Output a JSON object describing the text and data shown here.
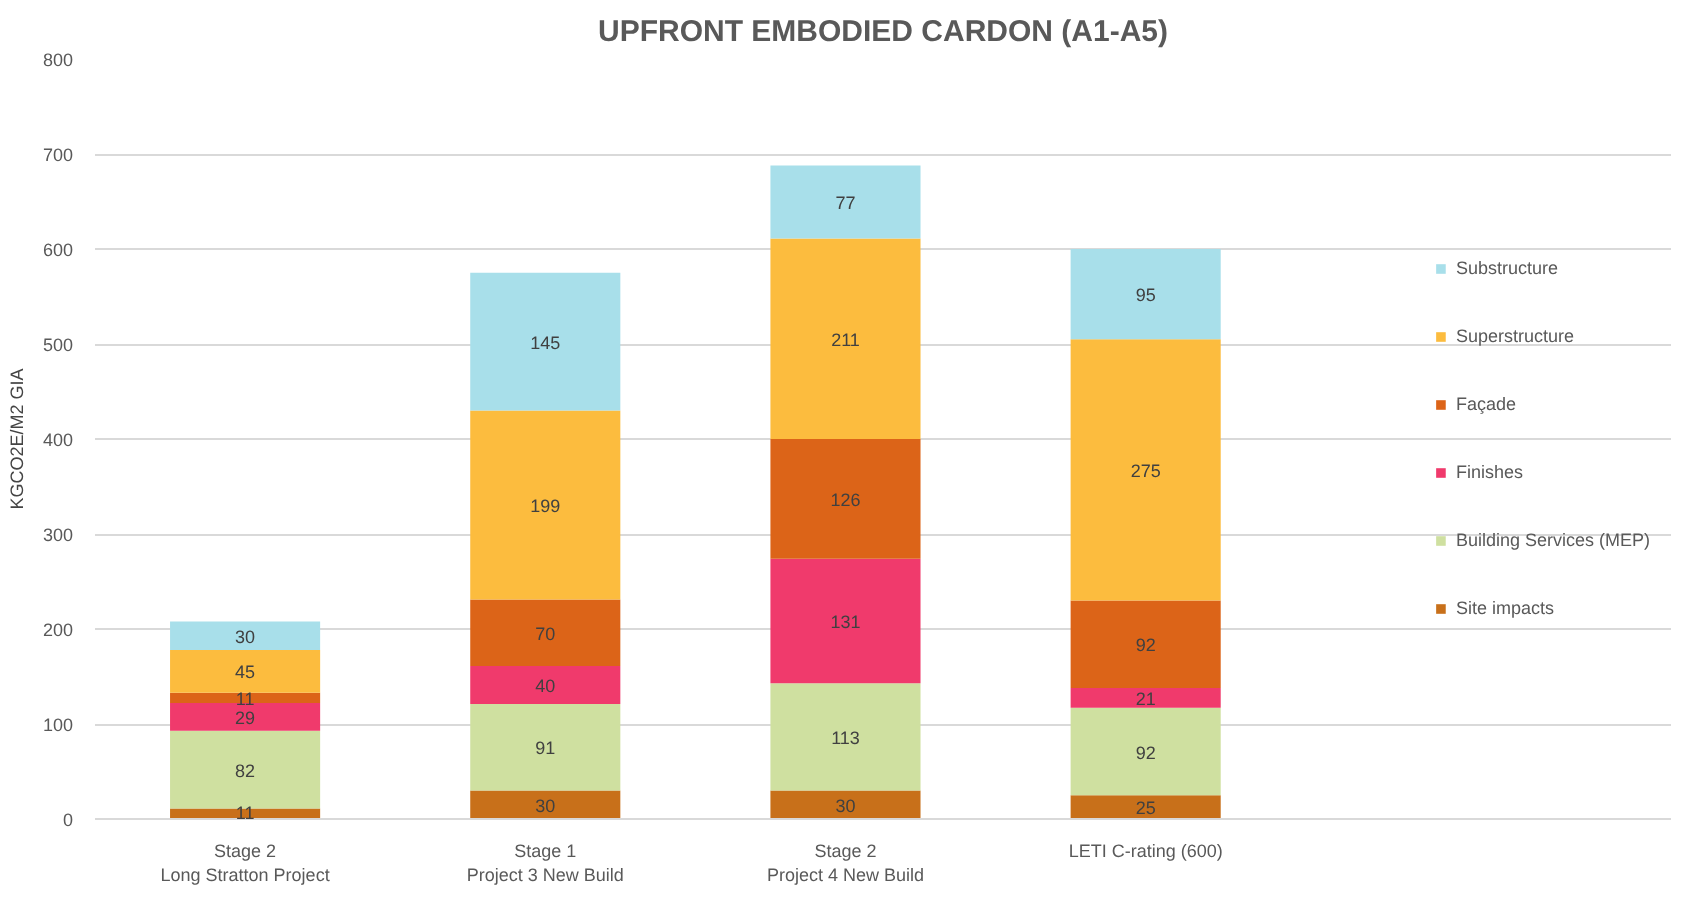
{
  "chart_data": {
    "type": "bar",
    "stacked": true,
    "title": "UPFRONT EMBODIED CARDON (A1-A5)",
    "ylabel": "KGCO2E/M2 GIA",
    "categories": [
      "Stage 2\nLong Stratton Project",
      "Stage 1\nProject 3 New Build",
      "Stage 2\nProject 4 New Build",
      "LETI C-rating (600)"
    ],
    "series": [
      {
        "name": "Site impacts",
        "color": "#c8701a",
        "values": [
          11,
          30,
          30,
          25
        ]
      },
      {
        "name": "Building Services (MEP)",
        "color": "#cfe0a0",
        "values": [
          82,
          91,
          113,
          92
        ]
      },
      {
        "name": "Finishes",
        "color": "#f03a6c",
        "values": [
          29,
          40,
          131,
          21
        ]
      },
      {
        "name": "Façade",
        "color": "#dc6418",
        "values": [
          11,
          70,
          126,
          92
        ]
      },
      {
        "name": "Superstructure",
        "color": "#fcbc3e",
        "values": [
          45,
          199,
          211,
          275
        ]
      },
      {
        "name": "Substructure",
        "color": "#a8dfea",
        "values": [
          30,
          145,
          77,
          95
        ]
      }
    ],
    "ylim": [
      0,
      800
    ],
    "yticks": [
      0,
      100,
      200,
      300,
      400,
      500,
      600,
      700,
      800
    ],
    "grid": "y",
    "legend": "right",
    "data_labels": true
  }
}
